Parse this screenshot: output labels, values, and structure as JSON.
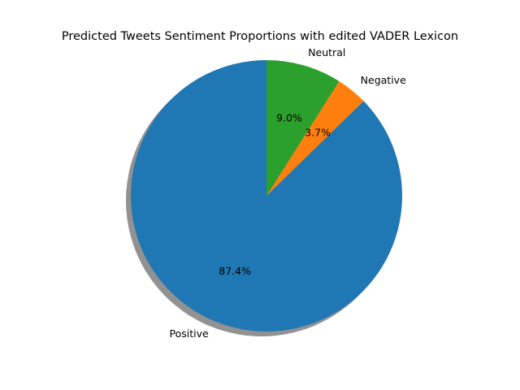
{
  "chart_data": {
    "type": "pie",
    "title": "Predicted Tweets Sentiment Proportions with edited VADER Lexicon",
    "labels": [
      "Positive",
      "Negative",
      "Neutral"
    ],
    "values": [
      87.4,
      3.7,
      9.0
    ],
    "percent_labels": [
      "87.4%",
      "3.7%",
      "9.0%"
    ],
    "colors": [
      "#1f77b4",
      "#ff7f0e",
      "#2ca02c"
    ],
    "start_angle": 90,
    "counterclockwise": true,
    "shadow": true,
    "legend": "none"
  }
}
